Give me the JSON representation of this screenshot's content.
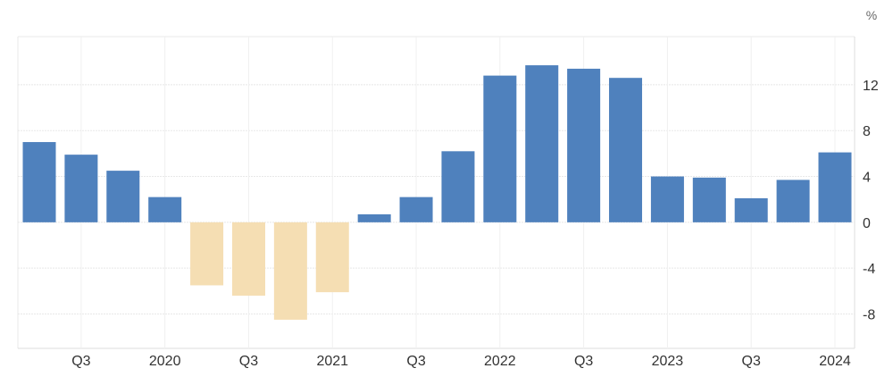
{
  "chart_data": {
    "type": "bar",
    "title": "",
    "xlabel": "",
    "ylabel": "",
    "unit_label": "%",
    "categories": [
      "2019 Q2",
      "2019 Q3",
      "2019 Q4",
      "2020 Q1",
      "2020 Q2",
      "2020 Q3",
      "2020 Q4",
      "2021 Q1",
      "2021 Q2",
      "2021 Q3",
      "2021 Q4",
      "2022 Q1",
      "2022 Q2",
      "2022 Q3",
      "2022 Q4",
      "2023 Q1",
      "2023 Q2",
      "2023 Q3",
      "2023 Q4",
      "2024 Q1"
    ],
    "values": [
      7.0,
      5.9,
      4.5,
      2.2,
      -5.5,
      -6.4,
      -8.5,
      -6.1,
      0.7,
      2.2,
      6.2,
      12.8,
      13.7,
      13.4,
      12.6,
      4.0,
      3.9,
      2.1,
      3.7,
      6.1
    ],
    "ylim": [
      -11,
      16.2
    ],
    "yticks": [
      12,
      8,
      4,
      0,
      -4,
      -8
    ],
    "ytick_labels": [
      "12",
      "8",
      "4",
      "0",
      "-4",
      "-8"
    ],
    "xtick_labels": [
      {
        "category": "2019 Q3",
        "label": "Q3"
      },
      {
        "category": "2020 Q1",
        "label": "2020"
      },
      {
        "category": "2020 Q3",
        "label": "Q3"
      },
      {
        "category": "2021 Q1",
        "label": "2021"
      },
      {
        "category": "2021 Q3",
        "label": "Q3"
      },
      {
        "category": "2022 Q1",
        "label": "2022"
      },
      {
        "category": "2022 Q3",
        "label": "Q3"
      },
      {
        "category": "2023 Q1",
        "label": "2023"
      },
      {
        "category": "2023 Q3",
        "label": "Q3"
      },
      {
        "category": "2024 Q1",
        "label": "2024"
      }
    ],
    "y_axis_position": "right",
    "grid": true,
    "legend": "none",
    "colors": {
      "positive": "#4f81bd",
      "negative": "#f5deb3",
      "grid": "#e8e8e8"
    }
  }
}
